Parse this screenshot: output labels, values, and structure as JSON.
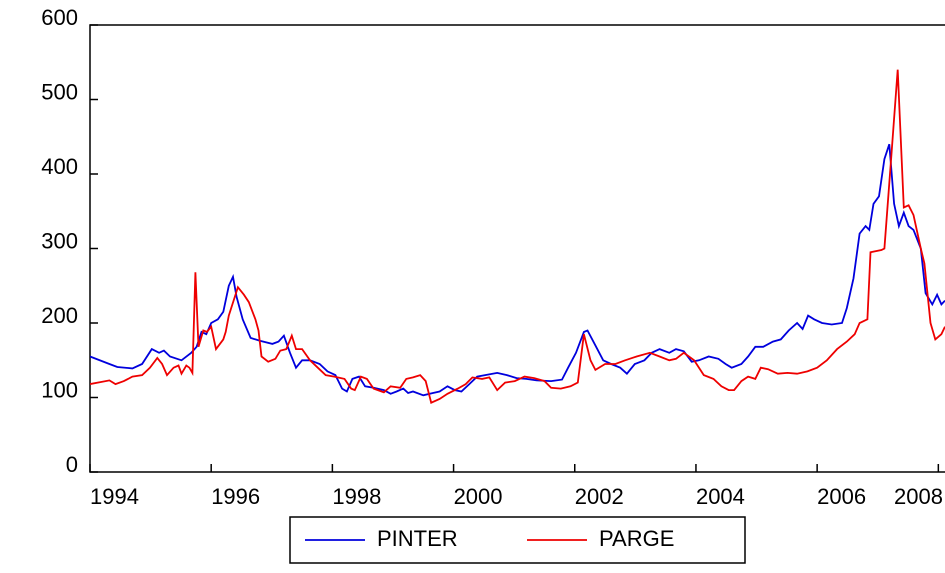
{
  "chart_data": {
    "type": "line",
    "xlim": [
      1994,
      2008.11
    ],
    "xticks": [
      1994,
      1996,
      1998,
      2000,
      2002,
      2004,
      2006,
      2008
    ],
    "ylim": [
      0,
      600
    ],
    "yticks": [
      0,
      100,
      200,
      300,
      400,
      500,
      600
    ],
    "grid": false,
    "legend": "bottom",
    "series": [
      {
        "name": "PINTER",
        "color": "#0000dd",
        "x": [
          1994.0,
          1994.32,
          1994.45,
          1994.7,
          1994.86,
          1995.02,
          1995.14,
          1995.22,
          1995.32,
          1995.51,
          1995.67,
          1995.76,
          1995.84,
          1995.92,
          1996.0,
          1996.11,
          1996.2,
          1996.29,
          1996.36,
          1996.42,
          1996.52,
          1996.65,
          1996.81,
          1997.01,
          1997.11,
          1997.2,
          1997.3,
          1997.4,
          1997.5,
          1997.63,
          1997.79,
          1997.92,
          1998.05,
          1998.16,
          1998.24,
          1998.33,
          1998.44,
          1998.54,
          1998.68,
          1998.85,
          1998.96,
          1999.06,
          1999.17,
          1999.25,
          1999.33,
          1999.5,
          1999.66,
          1999.77,
          1999.9,
          2000.02,
          2000.13,
          2000.26,
          2000.39,
          2000.52,
          2000.72,
          2000.88,
          2001.04,
          2001.2,
          2001.37,
          2001.61,
          2001.79,
          2001.89,
          2002.02,
          2002.15,
          2002.21,
          2002.34,
          2002.47,
          2002.6,
          2002.75,
          2002.86,
          2002.99,
          2003.15,
          2003.27,
          2003.4,
          2003.56,
          2003.67,
          2003.8,
          2003.93,
          2004.05,
          2004.21,
          2004.37,
          2004.49,
          2004.59,
          2004.75,
          2004.86,
          2004.98,
          2005.11,
          2005.27,
          2005.4,
          2005.53,
          2005.67,
          2005.76,
          2005.85,
          2005.95,
          2006.08,
          2006.24,
          2006.41,
          2006.49,
          2006.6,
          2006.7,
          2006.8,
          2006.86,
          2006.93,
          2007.02,
          2007.11,
          2007.19,
          2007.27,
          2007.35,
          2007.43,
          2007.51,
          2007.59,
          2007.71,
          2007.79,
          2007.9,
          2007.98,
          2008.05,
          2008.11
        ],
        "values": [
          155,
          145,
          141,
          139,
          145,
          165,
          160,
          163,
          155,
          150,
          160,
          168,
          188,
          185,
          200,
          205,
          215,
          250,
          262,
          235,
          205,
          180,
          176,
          172,
          175,
          183,
          160,
          140,
          150,
          150,
          145,
          135,
          130,
          112,
          108,
          125,
          128,
          115,
          113,
          110,
          105,
          108,
          112,
          106,
          108,
          103,
          106,
          108,
          115,
          110,
          108,
          118,
          128,
          130,
          133,
          130,
          126,
          125,
          123,
          122,
          124,
          140,
          160,
          188,
          190,
          170,
          150,
          145,
          140,
          132,
          145,
          150,
          160,
          165,
          160,
          165,
          162,
          148,
          150,
          155,
          152,
          145,
          140,
          145,
          155,
          168,
          168,
          175,
          178,
          190,
          200,
          192,
          210,
          205,
          200,
          198,
          200,
          220,
          260,
          320,
          330,
          325,
          360,
          370,
          420,
          440,
          360,
          330,
          348,
          330,
          325,
          300,
          240,
          225,
          238,
          225,
          230
        ]
      },
      {
        "name": "PARGE",
        "color": "#ee0000",
        "x": [
          1994.0,
          1994.32,
          1994.42,
          1994.56,
          1994.7,
          1994.86,
          1994.99,
          1995.11,
          1995.19,
          1995.27,
          1995.38,
          1995.46,
          1995.51,
          1995.59,
          1995.64,
          1995.69,
          1995.74,
          1995.79,
          1995.87,
          1995.93,
          1996.0,
          1996.08,
          1996.2,
          1996.24,
          1996.29,
          1996.37,
          1996.44,
          1996.54,
          1996.62,
          1996.73,
          1996.78,
          1996.83,
          1996.94,
          1997.06,
          1997.14,
          1997.24,
          1997.33,
          1997.4,
          1997.5,
          1997.63,
          1997.76,
          1997.89,
          1998.03,
          1998.2,
          1998.31,
          1998.37,
          1998.47,
          1998.57,
          1998.68,
          1998.85,
          1998.96,
          1999.12,
          1999.22,
          1999.33,
          1999.45,
          1999.54,
          1999.63,
          1999.77,
          1999.9,
          2000.07,
          2000.2,
          2000.31,
          2000.47,
          2000.59,
          2000.72,
          2000.85,
          2001.01,
          2001.17,
          2001.33,
          2001.5,
          2001.61,
          2001.77,
          2001.93,
          2002.05,
          2002.15,
          2002.26,
          2002.34,
          2002.5,
          2002.67,
          2002.83,
          2003.02,
          2003.24,
          2003.4,
          2003.56,
          2003.67,
          2003.8,
          2003.97,
          2004.13,
          2004.29,
          2004.42,
          2004.54,
          2004.63,
          2004.75,
          2004.86,
          2004.98,
          2005.07,
          2005.19,
          2005.35,
          2005.51,
          2005.67,
          2005.84,
          2006.0,
          2006.16,
          2006.33,
          2006.49,
          2006.62,
          2006.7,
          2006.83,
          2006.88,
          2007.06,
          2007.11,
          2007.22,
          2007.33,
          2007.43,
          2007.51,
          2007.59,
          2007.71,
          2007.77,
          2007.87,
          2007.95,
          2008.05,
          2008.11
        ],
        "values": [
          118,
          123,
          118,
          122,
          128,
          130,
          140,
          153,
          145,
          130,
          140,
          143,
          132,
          143,
          140,
          133,
          268,
          168,
          190,
          188,
          195,
          165,
          178,
          188,
          210,
          230,
          248,
          238,
          228,
          205,
          190,
          155,
          148,
          152,
          163,
          165,
          183,
          165,
          165,
          150,
          140,
          130,
          128,
          125,
          112,
          110,
          128,
          125,
          112,
          107,
          115,
          113,
          125,
          127,
          130,
          122,
          93,
          98,
          105,
          112,
          118,
          127,
          125,
          127,
          110,
          120,
          122,
          128,
          126,
          122,
          113,
          112,
          115,
          120,
          185,
          150,
          137,
          145,
          145,
          150,
          155,
          160,
          155,
          150,
          152,
          160,
          150,
          130,
          125,
          115,
          110,
          110,
          122,
          128,
          125,
          140,
          138,
          132,
          133,
          132,
          135,
          140,
          150,
          165,
          175,
          185,
          200,
          205,
          295,
          298,
          300,
          420,
          540,
          355,
          358,
          345,
          300,
          280,
          200,
          178,
          185,
          195
        ]
      }
    ]
  }
}
